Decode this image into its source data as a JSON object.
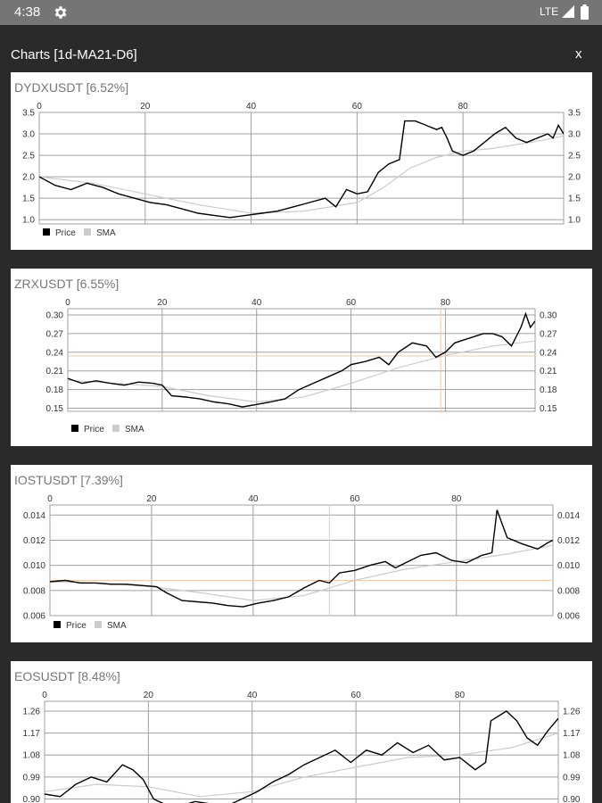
{
  "status": {
    "time": "4:38",
    "network": "LTE"
  },
  "dialog": {
    "title": "Charts [1d-MA21-D6]",
    "close_label": "x"
  },
  "legend": {
    "price": "Price",
    "sma": "SMA"
  },
  "colors": {
    "price": "#000000",
    "sma": "#cccccc",
    "grid": "#a0a0a0",
    "crosshair": "#f4c9a6"
  },
  "charts": [
    {
      "name": "DYDXUSDT",
      "change": "[6.52%]",
      "chart_data": {
        "type": "line",
        "x_ticks": [
          "0",
          "20",
          "40",
          "60",
          "80"
        ],
        "y_ticks": [
          "3.5",
          "3.0",
          "2.5",
          "2.0",
          "1.5",
          "1.0"
        ],
        "ylim": [
          0.9,
          3.5
        ],
        "xlim": [
          0,
          99
        ],
        "series": [
          {
            "name": "Price",
            "points": [
              [
                0,
                2.0
              ],
              [
                3,
                1.8
              ],
              [
                6,
                1.7
              ],
              [
                9,
                1.85
              ],
              [
                12,
                1.75
              ],
              [
                15,
                1.6
              ],
              [
                18,
                1.5
              ],
              [
                21,
                1.4
              ],
              [
                24,
                1.35
              ],
              [
                27,
                1.25
              ],
              [
                30,
                1.15
              ],
              [
                33,
                1.1
              ],
              [
                36,
                1.05
              ],
              [
                39,
                1.1
              ],
              [
                42,
                1.15
              ],
              [
                45,
                1.2
              ],
              [
                48,
                1.3
              ],
              [
                51,
                1.4
              ],
              [
                54,
                1.5
              ],
              [
                56,
                1.3
              ],
              [
                58,
                1.7
              ],
              [
                60,
                1.6
              ],
              [
                62,
                1.65
              ],
              [
                64,
                2.1
              ],
              [
                66,
                2.3
              ],
              [
                68,
                2.4
              ],
              [
                69,
                3.3
              ],
              [
                71,
                3.3
              ],
              [
                73,
                3.2
              ],
              [
                75,
                3.1
              ],
              [
                76,
                3.15
              ],
              [
                77,
                2.9
              ],
              [
                78,
                2.6
              ],
              [
                80,
                2.5
              ],
              [
                82,
                2.6
              ],
              [
                84,
                2.8
              ],
              [
                86,
                3.0
              ],
              [
                88,
                3.15
              ],
              [
                90,
                2.9
              ],
              [
                92,
                2.8
              ],
              [
                94,
                2.9
              ],
              [
                96,
                3.0
              ],
              [
                97,
                2.9
              ],
              [
                98,
                3.2
              ],
              [
                99,
                3.0
              ]
            ]
          },
          {
            "name": "SMA",
            "points": [
              [
                0,
                2.0
              ],
              [
                10,
                1.85
              ],
              [
                20,
                1.6
              ],
              [
                30,
                1.35
              ],
              [
                40,
                1.15
              ],
              [
                50,
                1.2
              ],
              [
                60,
                1.4
              ],
              [
                65,
                1.75
              ],
              [
                70,
                2.2
              ],
              [
                75,
                2.45
              ],
              [
                80,
                2.6
              ],
              [
                85,
                2.65
              ],
              [
                90,
                2.75
              ],
              [
                95,
                2.85
              ],
              [
                99,
                2.95
              ]
            ]
          }
        ]
      }
    },
    {
      "name": "ZRXUSDT",
      "change": "[6.55%]",
      "chart_data": {
        "type": "line",
        "x_ticks": [
          "0",
          "20",
          "40",
          "60",
          "80"
        ],
        "y_ticks": [
          "0.30",
          "0.27",
          "0.24",
          "0.21",
          "0.18",
          "0.15"
        ],
        "ylim": [
          0.145,
          0.31
        ],
        "xlim": [
          0,
          99
        ],
        "crosshair": {
          "x": 79,
          "y": 0.234
        },
        "series": [
          {
            "name": "Price",
            "points": [
              [
                0,
                0.198
              ],
              [
                3,
                0.19
              ],
              [
                6,
                0.194
              ],
              [
                9,
                0.19
              ],
              [
                12,
                0.187
              ],
              [
                15,
                0.192
              ],
              [
                18,
                0.19
              ],
              [
                20,
                0.187
              ],
              [
                22,
                0.17
              ],
              [
                25,
                0.168
              ],
              [
                28,
                0.165
              ],
              [
                31,
                0.16
              ],
              [
                34,
                0.157
              ],
              [
                37,
                0.152
              ],
              [
                40,
                0.156
              ],
              [
                43,
                0.16
              ],
              [
                46,
                0.165
              ],
              [
                49,
                0.18
              ],
              [
                52,
                0.19
              ],
              [
                55,
                0.2
              ],
              [
                58,
                0.21
              ],
              [
                60,
                0.22
              ],
              [
                63,
                0.225
              ],
              [
                66,
                0.232
              ],
              [
                68,
                0.22
              ],
              [
                70,
                0.24
              ],
              [
                73,
                0.255
              ],
              [
                76,
                0.25
              ],
              [
                78,
                0.232
              ],
              [
                80,
                0.24
              ],
              [
                82,
                0.255
              ],
              [
                84,
                0.26
              ],
              [
                86,
                0.265
              ],
              [
                88,
                0.27
              ],
              [
                90,
                0.27
              ],
              [
                92,
                0.265
              ],
              [
                94,
                0.25
              ],
              [
                96,
                0.28
              ],
              [
                97,
                0.302
              ],
              [
                98,
                0.28
              ],
              [
                99,
                0.29
              ]
            ]
          },
          {
            "name": "SMA",
            "points": [
              [
                0,
                0.195
              ],
              [
                10,
                0.19
              ],
              [
                20,
                0.185
              ],
              [
                30,
                0.17
              ],
              [
                40,
                0.16
              ],
              [
                50,
                0.168
              ],
              [
                60,
                0.19
              ],
              [
                70,
                0.215
              ],
              [
                80,
                0.235
              ],
              [
                90,
                0.25
              ],
              [
                99,
                0.258
              ]
            ]
          }
        ]
      }
    },
    {
      "name": "IOSTUSDT",
      "change": "[7.39%]",
      "chart_data": {
        "type": "line",
        "x_ticks": [
          "0",
          "20",
          "40",
          "60",
          "80"
        ],
        "y_ticks": [
          "0.014",
          "0.012",
          "0.010",
          "0.008",
          "0.006"
        ],
        "ylim": [
          0.006,
          0.0148
        ],
        "xlim": [
          0,
          99
        ],
        "crosshair": {
          "x": 55,
          "y": 0.0088
        },
        "series": [
          {
            "name": "Price",
            "points": [
              [
                0,
                0.0087
              ],
              [
                3,
                0.0088
              ],
              [
                6,
                0.0086
              ],
              [
                9,
                0.0086
              ],
              [
                12,
                0.0085
              ],
              [
                15,
                0.0085
              ],
              [
                18,
                0.0084
              ],
              [
                21,
                0.0083
              ],
              [
                23,
                0.0078
              ],
              [
                26,
                0.0072
              ],
              [
                29,
                0.0071
              ],
              [
                32,
                0.007
              ],
              [
                35,
                0.0068
              ],
              [
                38,
                0.0067
              ],
              [
                41,
                0.007
              ],
              [
                44,
                0.0072
              ],
              [
                47,
                0.0075
              ],
              [
                50,
                0.0082
              ],
              [
                53,
                0.0088
              ],
              [
                55,
                0.0086
              ],
              [
                57,
                0.0094
              ],
              [
                60,
                0.0096
              ],
              [
                63,
                0.01
              ],
              [
                66,
                0.0103
              ],
              [
                68,
                0.0098
              ],
              [
                70,
                0.0102
              ],
              [
                73,
                0.0108
              ],
              [
                76,
                0.011
              ],
              [
                79,
                0.0104
              ],
              [
                82,
                0.0102
              ],
              [
                85,
                0.0108
              ],
              [
                87,
                0.011
              ],
              [
                88,
                0.0144
              ],
              [
                90,
                0.0122
              ],
              [
                93,
                0.0117
              ],
              [
                96,
                0.0113
              ],
              [
                98,
                0.0118
              ],
              [
                99,
                0.012
              ]
            ]
          },
          {
            "name": "SMA",
            "points": [
              [
                0,
                0.0087
              ],
              [
                10,
                0.0086
              ],
              [
                20,
                0.0083
              ],
              [
                30,
                0.0078
              ],
              [
                40,
                0.0072
              ],
              [
                50,
                0.0076
              ],
              [
                60,
                0.0088
              ],
              [
                70,
                0.0097
              ],
              [
                80,
                0.0103
              ],
              [
                90,
                0.0109
              ],
              [
                99,
                0.0116
              ]
            ]
          }
        ]
      }
    },
    {
      "name": "EOSUSDT",
      "change": "[8.48%]",
      "chart_data": {
        "type": "line",
        "x_ticks": [
          "0",
          "20",
          "40",
          "60",
          "80"
        ],
        "y_ticks": [
          "1.26",
          "1.17",
          "1.08",
          "0.99",
          "0.90"
        ],
        "ylim": [
          0.88,
          1.3
        ],
        "xlim": [
          0,
          99
        ],
        "series": [
          {
            "name": "Price",
            "points": [
              [
                0,
                0.92
              ],
              [
                3,
                0.91
              ],
              [
                6,
                0.96
              ],
              [
                9,
                0.99
              ],
              [
                12,
                0.97
              ],
              [
                15,
                1.04
              ],
              [
                17,
                1.02
              ],
              [
                19,
                0.98
              ],
              [
                21,
                0.9
              ],
              [
                23,
                0.88
              ],
              [
                26,
                0.87
              ],
              [
                29,
                0.89
              ],
              [
                32,
                0.88
              ],
              [
                35,
                0.87
              ],
              [
                38,
                0.9
              ],
              [
                41,
                0.93
              ],
              [
                44,
                0.97
              ],
              [
                47,
                1.0
              ],
              [
                50,
                1.04
              ],
              [
                53,
                1.07
              ],
              [
                56,
                1.1
              ],
              [
                59,
                1.05
              ],
              [
                62,
                1.1
              ],
              [
                65,
                1.08
              ],
              [
                68,
                1.13
              ],
              [
                71,
                1.09
              ],
              [
                74,
                1.12
              ],
              [
                77,
                1.06
              ],
              [
                80,
                1.07
              ],
              [
                83,
                1.02
              ],
              [
                85,
                1.05
              ],
              [
                86,
                1.22
              ],
              [
                89,
                1.26
              ],
              [
                91,
                1.22
              ],
              [
                93,
                1.15
              ],
              [
                95,
                1.12
              ],
              [
                97,
                1.18
              ],
              [
                99,
                1.23
              ]
            ]
          },
          {
            "name": "SMA",
            "points": [
              [
                0,
                0.93
              ],
              [
                10,
                0.96
              ],
              [
                20,
                0.95
              ],
              [
                30,
                0.91
              ],
              [
                40,
                0.93
              ],
              [
                50,
                0.99
              ],
              [
                60,
                1.03
              ],
              [
                70,
                1.07
              ],
              [
                80,
                1.08
              ],
              [
                90,
                1.11
              ],
              [
                99,
                1.17
              ]
            ]
          }
        ]
      }
    }
  ]
}
